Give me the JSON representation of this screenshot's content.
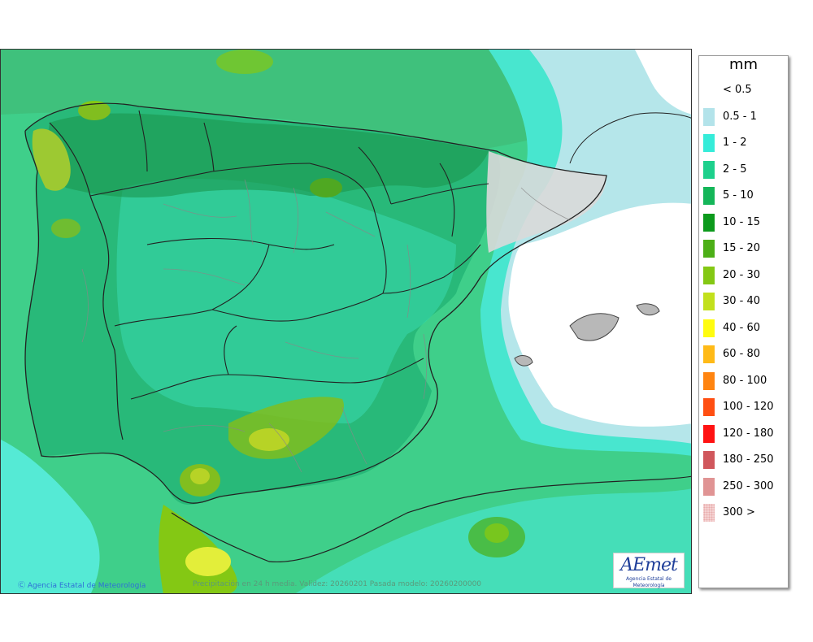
{
  "map": {
    "credit": "Agencia Estatal de Meteorología",
    "run_info": "Precipitación en 24 h media. Validez: 20260201 Pasada modelo: 20260200000",
    "logo_text": "AEmet",
    "logo_subtext": "Agencia Estatal de Meteorología"
  },
  "legend": {
    "unit": "mm",
    "items": [
      {
        "label": "< 0.5",
        "color": "#ffffff"
      },
      {
        "label": "0.5 - 1",
        "color": "#b3e3ea"
      },
      {
        "label": "1 - 2",
        "color": "#35ecd9"
      },
      {
        "label": "2 - 5",
        "color": "#1dd08c"
      },
      {
        "label": "5 - 10",
        "color": "#14b659"
      },
      {
        "label": "10 - 15",
        "color": "#0c9a1c"
      },
      {
        "label": "15 - 20",
        "color": "#4caf17"
      },
      {
        "label": "20 - 30",
        "color": "#84c814"
      },
      {
        "label": "30 - 40",
        "color": "#c2e01c"
      },
      {
        "label": "40 - 60",
        "color": "#fffc0f"
      },
      {
        "label": "60 - 80",
        "color": "#ffba17"
      },
      {
        "label": "80 - 100",
        "color": "#ff8410"
      },
      {
        "label": "100 - 120",
        "color": "#ff4f12"
      },
      {
        "label": "120 - 180",
        "color": "#ff1212"
      },
      {
        "label": "180 - 250",
        "color": "#d0575c"
      },
      {
        "label": "250 - 300",
        "color": "#e09494"
      },
      {
        "label": "300 >",
        "color": "#f4d2d2"
      }
    ]
  }
}
